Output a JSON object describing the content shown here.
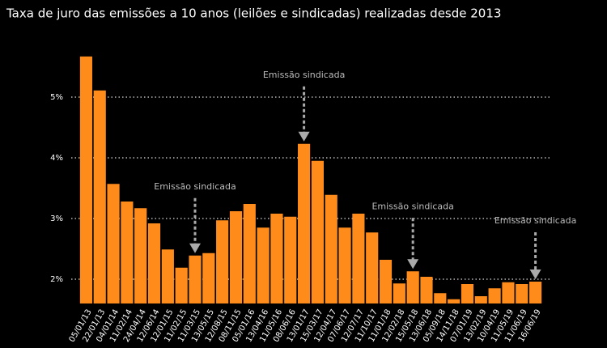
{
  "chart_data": {
    "type": "bar",
    "subtitle": "Taxa de juro das emissões a 10 anos (leilões e sindicadas) realizadas desde 2013",
    "categories": [
      "05/01/13",
      "22/01/13",
      "04/01/14",
      "11/02/14",
      "24/04/14",
      "12/06/14",
      "12/01/15",
      "11/02/15",
      "11/03/15",
      "13/05/15",
      "12/08/15",
      "08/11/15",
      "05/01/16",
      "13/04/16",
      "11/05/16",
      "08/06/16",
      "13/01/17",
      "15/03/17",
      "12/04/17",
      "07/06/17",
      "12/07/17",
      "11/10/17",
      "11/01/18",
      "12/02/18",
      "15/05/18",
      "13/06/18",
      "05/09/18",
      "14/11/18",
      "07/01/19",
      "13/02/19",
      "10/04/19",
      "11/05/19",
      "11/06/19",
      "16/06/19"
    ],
    "values": [
      5.67,
      5.11,
      3.57,
      3.28,
      3.17,
      2.92,
      2.49,
      2.19,
      2.39,
      2.43,
      2.97,
      3.12,
      3.24,
      2.85,
      3.08,
      3.03,
      4.23,
      3.95,
      3.39,
      2.85,
      3.08,
      2.77,
      2.32,
      1.93,
      2.13,
      2.04,
      1.77,
      1.67,
      1.92,
      1.72,
      1.85,
      1.95,
      1.92,
      1.96
    ],
    "color": "#ff8c1a",
    "ylim": [
      1.6,
      6.0
    ],
    "yticks": [
      {
        "value": 2,
        "label": "2%"
      },
      {
        "value": 3,
        "label": "3%"
      },
      {
        "value": 4,
        "label": "4%"
      },
      {
        "value": 5,
        "label": "5%"
      }
    ],
    "grid": true,
    "annotations": [
      {
        "text": "Emissão sindicada",
        "category": "11/03/15"
      },
      {
        "text": "Emissão sindicada",
        "category": "13/01/17"
      },
      {
        "text": "Emissão sindicada",
        "category": "15/05/18"
      },
      {
        "text": "Emissão sindicada",
        "category": "16/06/19"
      }
    ]
  }
}
